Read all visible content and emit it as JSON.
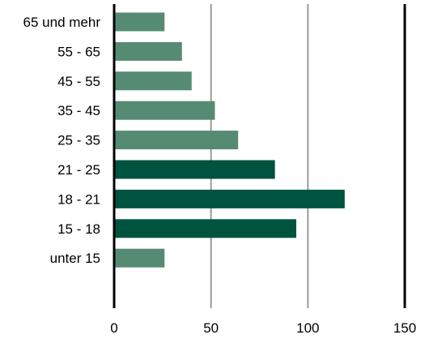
{
  "chart_data": {
    "type": "bar",
    "orientation": "horizontal",
    "title": "",
    "xlabel": "",
    "ylabel": "",
    "categories": [
      "65 und mehr",
      "55 - 65",
      "45 - 55",
      "35 - 45",
      "25 - 35",
      "21 - 25",
      "18 - 21",
      "15 - 18",
      "unter 15"
    ],
    "values": [
      26,
      35,
      40,
      52,
      64,
      83,
      119,
      94,
      26
    ],
    "highlighted": [
      false,
      false,
      false,
      false,
      false,
      true,
      true,
      true,
      false
    ],
    "xlim": [
      0,
      150
    ],
    "xticks": [
      "0",
      "50",
      "100",
      "150"
    ],
    "grid": true,
    "colors": {
      "bar": "#558b73",
      "highlight": "#00533f",
      "grid": "#9a9a9a",
      "axis": "#000000"
    }
  }
}
